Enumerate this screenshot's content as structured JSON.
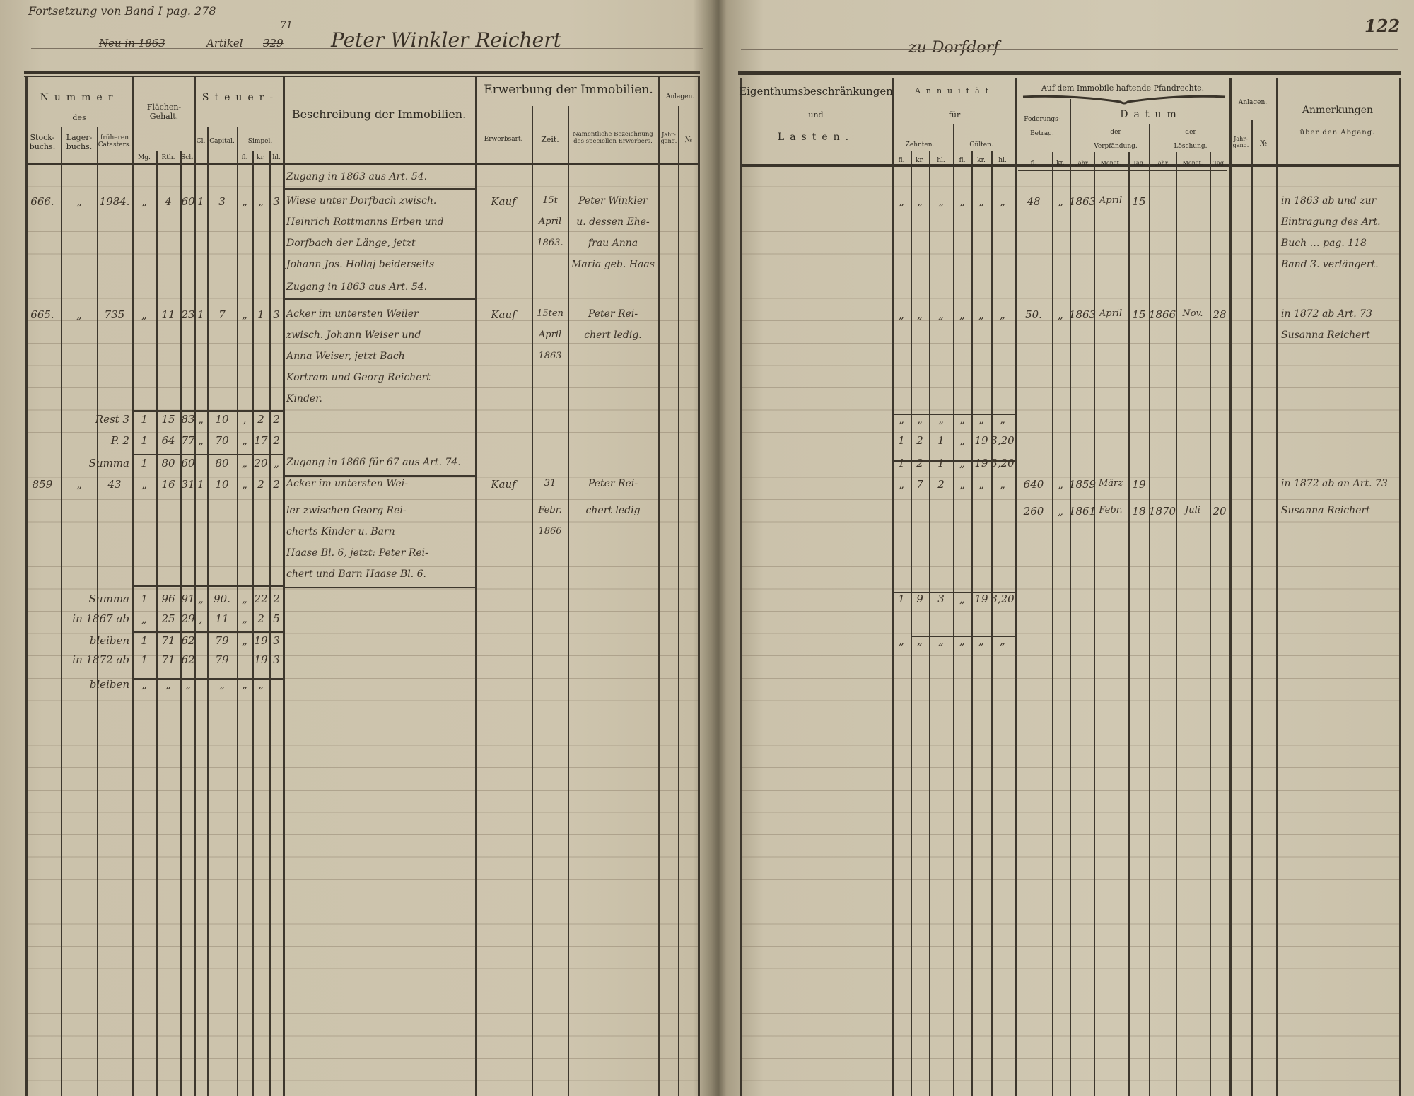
{
  "top_notes": {
    "continuation": "Fortsetzung von Band I pag. 278",
    "origin_struck": "Neu in 1863",
    "article_label": "Artikel",
    "article_struck": "329",
    "article_new": "71",
    "owner_name": "Peter Winkler Reichert",
    "place": "zu Dorfdorf",
    "page_number": "122"
  },
  "left_headers": {
    "nummer": "Nummer",
    "des": "des",
    "stockbuchs": [
      "Stock-",
      "buchs."
    ],
    "lagerbuchs": [
      "Lager-",
      "buchs."
    ],
    "catasters": [
      "früheren",
      "Catasters."
    ],
    "flaechen": [
      "Flächen-",
      "Gehalt."
    ],
    "flaechen_sub": [
      "Mg.",
      "Rth.",
      "Sch."
    ],
    "steuer": "Steuer-",
    "cl": "Cl.",
    "capital": "Capital.",
    "simpel": "Simpel.",
    "simpel_sub": [
      "fl.",
      "kr.",
      "hl."
    ],
    "beschreibung": "Beschreibung der Immobilien.",
    "erwerbung": "Erwerbung der Immobilien.",
    "erwerbsart": "Erwerbsart.",
    "zeit": "Zeit.",
    "namentliche": [
      "Namentliche Bezeichnung",
      "des speciellen Erwerbers."
    ],
    "anlagen": "Anlagen.",
    "jahrgang": [
      "Jahr-",
      "gang."
    ],
    "nr": "№"
  },
  "right_headers": {
    "eigenthum": "Eigenthumsbeschränkungen",
    "und": "und",
    "lasten": "Lasten.",
    "annuitaet": "Annuität",
    "fuer": "für",
    "zehnten": "Zehnten.",
    "gueltenl": "Gülten.",
    "money_sub": [
      "fl.",
      "kr.",
      "hl."
    ],
    "pfandrechte": "Auf dem Immobile haftende Pfandrechte.",
    "foderung": [
      "Foderungs-",
      "Betrag."
    ],
    "foderung_sub": [
      "fl.",
      "kr."
    ],
    "datum": "Datum",
    "der": "der",
    "verpfaendung": "Verpfändung.",
    "loeschung": "Löschung.",
    "date_sub": [
      "Jahr.",
      "Monat.",
      "Tag."
    ],
    "anlagen": "Anlagen.",
    "jahrgang": [
      "Jahr-",
      "gang."
    ],
    "nr": "№",
    "anmerkungen": "Anmerkungen",
    "abgang": "über den Abgang."
  },
  "rows": [
    {
      "desc": "Zugang in 1863 aus Art. 54."
    },
    {
      "stock": "666.",
      "lager": "„",
      "frueh": "1984.",
      "mg": "„",
      "rth": "4",
      "sch": "60",
      "cl": "1",
      "capital": "3",
      "fl": "„",
      "kr": "„",
      "hl": "3",
      "desc": "Wiese unter Dorfbach zwisch.",
      "erwerb": "Kauf",
      "zeit": "15t",
      "name": "Peter Winkler",
      "z_fl": "„",
      "z_kr": "„",
      "z_hl": "„",
      "g_fl": "„",
      "g_kr": "„",
      "g_hl": "„",
      "f_fl": "48",
      "f_kr": "„",
      "v_jahr": "1863",
      "v_monat": "April",
      "v_tag": "15",
      "anm": "in 1863 ab und zur"
    },
    {
      "desc": "Heinrich Rottmanns Erben und",
      "zeit": "April",
      "name": "u. dessen Ehe-",
      "anm": "Eintragung des Art."
    },
    {
      "desc": "Dorfbach der Länge, jetzt",
      "zeit": "1863.",
      "name": "frau Anna",
      "anm": "Buch … pag. 118"
    },
    {
      "desc": "Johann Jos. Hollaj beiderseits",
      "name": "Maria geb. Haas",
      "anm": "Band 3. verlängert."
    },
    {
      "desc": "Zugang in 1863 aus Art. 54."
    },
    {
      "stock": "665.",
      "lager": "„",
      "frueh": "735",
      "mg": "„",
      "rth": "11",
      "sch": "23",
      "cl": "1",
      "capital": "7",
      "fl": "„",
      "kr": "1",
      "hl": "3",
      "desc": "Acker im untersten Weiler",
      "erwerb": "Kauf",
      "zeit": "15ten",
      "name": "Peter Rei-",
      "z_fl": "„",
      "z_kr": "„",
      "z_hl": "„",
      "g_fl": "„",
      "g_kr": "„",
      "g_hl": "„",
      "f_fl": "50.",
      "f_kr": "„",
      "v_jahr": "1863",
      "v_monat": "April",
      "v_tag": "15",
      "l_jahr": "1866",
      "l_monat": "Nov.",
      "l_tag": "28",
      "anm": "in 1872 ab Art. 73"
    },
    {
      "desc": "zwisch. Johann Weiser und",
      "zeit": "April",
      "name": "chert ledig.",
      "anm": "Susanna Reichert"
    },
    {
      "desc": "Anna Weiser, jetzt Bach",
      "zeit": "1863"
    },
    {
      "desc": "Kortram und Georg Reichert"
    },
    {
      "desc": "Kinder."
    },
    {
      "label": "Rest 3",
      "mg": "1",
      "rth": "15",
      "sch": "83",
      "cl": "„",
      "capital": "10",
      "fl": ",",
      "kr": "2",
      "hl": "2",
      "z_fl": "„",
      "z_kr": "„",
      "z_hl": "„",
      "g_fl": "„",
      "g_kr": "„",
      "g_hl": "„"
    },
    {
      "label": "P. 2",
      "mg": "1",
      "rth": "64",
      "sch": "77",
      "cl": "„",
      "capital": "70",
      "fl": "„",
      "kr": "17",
      "hl": "2",
      "z_fl": "1",
      "z_kr": "2",
      "z_hl": "1",
      "g_fl": "„",
      "g_kr": "19",
      "g_hl": "3,20"
    },
    {
      "label": "Summa",
      "mg": "1",
      "rth": "80",
      "sch": "60",
      "capital": "80",
      "fl": "„",
      "kr": "20",
      "hl": "„",
      "desc": "Zugang in 1866 für 67 aus Art. 74.",
      "z_fl": "1",
      "z_kr": "2",
      "z_hl": "1",
      "g_fl": "„",
      "g_kr": "19",
      "g_hl": "3,20"
    },
    {
      "stock": "859",
      "lager": "„",
      "frueh": "43",
      "mg": "„",
      "rth": "16",
      "sch": "31",
      "cl": "1",
      "capital": "10",
      "fl": "„",
      "kr": "2",
      "hl": "2",
      "desc": "Acker im untersten Wei-",
      "erwerb": "Kauf",
      "zeit": "31",
      "name": "Peter Rei-",
      "z_fl": "„",
      "z_kr": "7",
      "z_hl": "2",
      "g_fl": "„",
      "g_kr": "„",
      "g_hl": "„",
      "f_fl": "640",
      "f_kr": "„",
      "v_jahr": "1859",
      "v_monat": "März",
      "v_tag": "19",
      "anm": "in 1872 ab an Art. 73"
    },
    {
      "desc": "ler zwischen Georg Rei-",
      "zeit": "Febr.",
      "name": "chert ledig",
      "f_fl": "260",
      "f_kr": "„",
      "v_jahr": "1861",
      "v_monat": "Febr.",
      "v_tag": "18",
      "l_jahr": "1870",
      "l_monat": "Juli",
      "l_tag": "20",
      "anm": "Susanna Reichert"
    },
    {
      "desc": "cherts Kinder u. Barn",
      "zeit": "1866"
    },
    {
      "desc": "Haase Bl. 6, jetzt: Peter Rei-"
    },
    {
      "desc": "chert und Barn Haase Bl. 6."
    },
    {
      "label": "Summa",
      "mg": "1",
      "rth": "96",
      "sch": "91",
      "cl": "„",
      "capital": "90.",
      "fl": "„",
      "kr": "22",
      "hl": "2",
      "z_fl": "1",
      "z_kr": "9",
      "z_hl": "3",
      "g_fl": "„",
      "g_kr": "19",
      "g_hl": "3,20"
    },
    {
      "label": "in 1867 ab",
      "mg": "„",
      "rth": "25",
      "sch": "29",
      "cl": ",",
      "capital": "11",
      "fl": "„",
      "kr": "2",
      "hl": "5"
    },
    {
      "label": "bleiben",
      "mg": "1",
      "rth": "71",
      "sch": "62",
      "capital": "79",
      "fl": "„",
      "kr": "19",
      "hl": "3",
      "z_fl": "„",
      "z_kr": "„",
      "z_hl": "„",
      "g_fl": "„",
      "g_kr": "„",
      "g_hl": "„"
    },
    {
      "label": "in 1872 ab",
      "mg": "1",
      "rth": "71",
      "sch": "62",
      "capital": "79",
      "kr": "19",
      "hl": "3"
    },
    {
      "label": "bleiben",
      "mg": "„",
      "rth": "„",
      "sch": "„",
      "capital": "„",
      "fl": "„",
      "kr": "„"
    }
  ]
}
